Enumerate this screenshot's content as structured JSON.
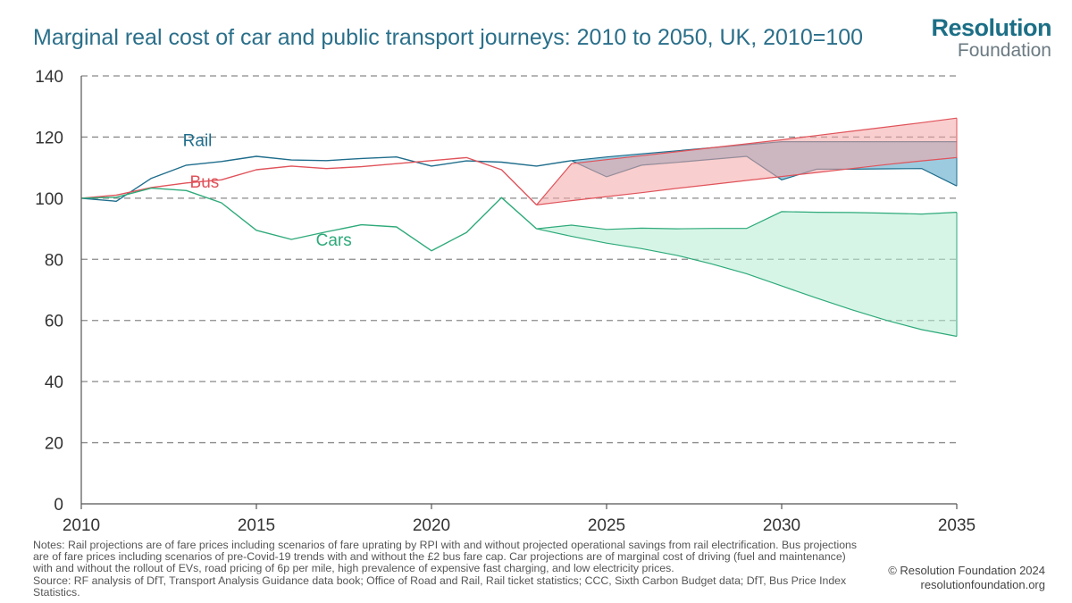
{
  "title": "Marginal real cost of car and public transport journeys: 2010 to 2050, UK, 2010=100",
  "logo": {
    "line1": "Resolution",
    "line2": "Foundation"
  },
  "notes": [
    "Notes: Rail projections are of fare prices including scenarios of fare uprating by RPI with and without projected operational savings from rail electrification. Bus projections are of fare prices including scenarios of pre-Covid-19 trends with and without the £2 bus fare cap. Car projections are of marginal cost of driving (fuel and maintenance) with and without the rollout of EVs, road pricing of 6p per mile, high prevalence of expensive fast charging, and low electricity prices.",
    "Source: RF analysis of DfT, Transport Analysis Guidance data book; Office of Road and Rail, Rail ticket statistics; CCC, Sixth Carbon Budget data; DfT, Bus Price Index Statistics."
  ],
  "copyright": {
    "line1": "© Resolution Foundation 2024",
    "line2": "resolutionfoundation.org"
  },
  "chart_data": {
    "type": "line",
    "title": "Marginal real cost of car and public transport journeys: 2010 to 2050, UK, 2010=100",
    "xlabel": "",
    "ylabel": "",
    "xlim": [
      2010,
      2035
    ],
    "ylim": [
      0,
      140
    ],
    "x_ticks": [
      2010,
      2015,
      2020,
      2025,
      2030,
      2035
    ],
    "y_ticks": [
      0,
      20,
      40,
      60,
      80,
      100,
      120,
      140
    ],
    "grid": "horizontal-dashed",
    "series": [
      {
        "name": "Rail",
        "color": "#1f6d8c",
        "x": [
          2010,
          2011,
          2012,
          2013,
          2014,
          2015,
          2016,
          2017,
          2018,
          2019,
          2020,
          2021,
          2022,
          2023,
          2024
        ],
        "values": [
          100,
          99,
          106.5,
          110.8,
          112,
          113.7,
          112.5,
          112.3,
          113,
          113.5,
          110.5,
          112.2,
          111.8,
          110.5,
          112.3
        ]
      },
      {
        "name": "Bus",
        "color": "#e0535a",
        "x": [
          2010,
          2011,
          2012,
          2013,
          2014,
          2015,
          2016,
          2017,
          2018,
          2019,
          2020,
          2021,
          2022,
          2023
        ],
        "values": [
          100,
          101,
          103.5,
          105,
          106,
          109.3,
          110.5,
          109.7,
          110.3,
          111.3,
          112.3,
          113.3,
          109.3,
          97.8
        ]
      },
      {
        "name": "Cars",
        "color": "#2eaa7a",
        "x": [
          2010,
          2011,
          2012,
          2013,
          2014,
          2015,
          2016,
          2017,
          2018,
          2019,
          2020,
          2021,
          2022,
          2023
        ],
        "values": [
          100,
          100.3,
          103.3,
          102.5,
          98.5,
          89.5,
          86.5,
          89,
          91.3,
          90.6,
          82.8,
          88.8,
          100.2,
          90
        ]
      }
    ],
    "projection_bands": [
      {
        "name": "Rail",
        "color": "#1f6d8c",
        "fill": "#4aa0c4",
        "x": [
          2024,
          2025,
          2026,
          2027,
          2028,
          2029,
          2030,
          2031,
          2032,
          2033,
          2034,
          2035
        ],
        "upper": [
          112.3,
          113.5,
          114.5,
          115.5,
          116.5,
          117.5,
          118.5,
          118.5,
          118.5,
          118.5,
          118.5,
          118.5
        ],
        "lower": [
          112.3,
          107,
          110.8,
          111.7,
          112.7,
          113.7,
          106,
          109.5,
          109.5,
          109.6,
          109.7,
          104
        ]
      },
      {
        "name": "Bus",
        "color": "#e0535a",
        "fill": "#f4a6a6",
        "x": [
          2023,
          2024,
          2025,
          2026,
          2027,
          2028,
          2029,
          2030,
          2031,
          2032,
          2033,
          2034,
          2035
        ],
        "upper": [
          97.8,
          111.3,
          112.6,
          113.9,
          115.2,
          116.5,
          117.8,
          119.1,
          120.5,
          121.9,
          123.3,
          124.7,
          126.2
        ],
        "lower": [
          97.8,
          99.2,
          100.5,
          101.8,
          103.2,
          104.5,
          105.8,
          107.1,
          108.4,
          109.7,
          111,
          112.2,
          113.3
        ]
      },
      {
        "name": "Cars",
        "color": "#2eaa7a",
        "fill": "#b5ecd3",
        "x": [
          2023,
          2024,
          2025,
          2026,
          2027,
          2028,
          2029,
          2030,
          2031,
          2032,
          2033,
          2034,
          2035
        ],
        "upper": [
          90,
          91.2,
          89.8,
          90.2,
          90,
          90.1,
          90.1,
          95.6,
          95.4,
          95.3,
          95.1,
          94.8,
          95.4
        ],
        "lower": [
          90,
          87.5,
          85.3,
          83.5,
          81.3,
          78.5,
          75.3,
          71.3,
          67.3,
          63.5,
          60,
          57,
          54.8
        ]
      }
    ],
    "annotations": [
      {
        "text": "Rail",
        "x": 2012.9,
        "y": 117,
        "color": "#1f6d8c"
      },
      {
        "text": "Bus",
        "x": 2013.1,
        "y": 103.5,
        "color": "#e0535a"
      },
      {
        "text": "Cars",
        "x": 2016.7,
        "y": 84.5,
        "color": "#2eaa7a"
      }
    ]
  }
}
